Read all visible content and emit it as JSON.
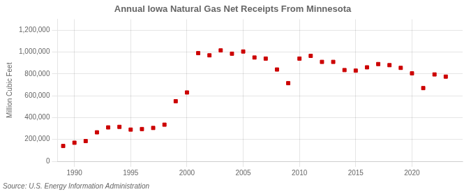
{
  "chart_data": {
    "type": "scatter",
    "title": "Annual Iowa Natural Gas Net Receipts From Minnesota",
    "ylabel": "Million Cubic Feet",
    "source": "Source: U.S. Energy Information Administration",
    "color": "#cc0000",
    "marker": "square",
    "grid": true,
    "xlim": [
      1988.5,
      2024.5
    ],
    "ylim": [
      0,
      1300000
    ],
    "xticks": [
      1990,
      1995,
      2000,
      2005,
      2010,
      2015,
      2020
    ],
    "yticks": [
      0,
      {
        "value": 200000,
        "label": "200,000"
      },
      {
        "value": 400000,
        "label": "400,000"
      },
      {
        "value": 600000,
        "label": "600,000"
      },
      {
        "value": 800000,
        "label": "800,000"
      },
      {
        "value": 1000000,
        "label": "1,000,000"
      },
      {
        "value": 1200000,
        "label": "1,200,000"
      }
    ],
    "x": [
      1989,
      1990,
      1991,
      1992,
      1993,
      1994,
      1995,
      1996,
      1997,
      1998,
      1999,
      2000,
      2001,
      2002,
      2003,
      2004,
      2005,
      2006,
      2007,
      2008,
      2009,
      2010,
      2011,
      2012,
      2013,
      2014,
      2015,
      2016,
      2017,
      2018,
      2019,
      2020,
      2021,
      2022,
      2023
    ],
    "values": [
      140000,
      170000,
      185000,
      265000,
      310000,
      315000,
      290000,
      295000,
      305000,
      335000,
      550000,
      630000,
      990000,
      970000,
      1015000,
      985000,
      1005000,
      950000,
      940000,
      840000,
      715000,
      940000,
      965000,
      910000,
      910000,
      835000,
      830000,
      860000,
      890000,
      880000,
      855000,
      805000,
      670000,
      795000,
      775000
    ]
  }
}
